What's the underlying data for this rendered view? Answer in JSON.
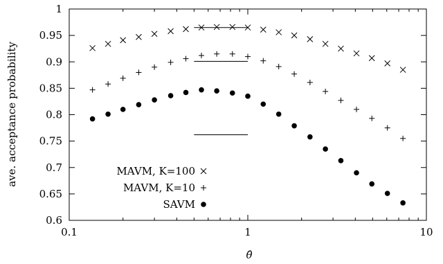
{
  "chart_data": {
    "type": "scatter",
    "xscale": "log",
    "xlim": [
      0.1,
      10
    ],
    "ylim": [
      0.6,
      1.0
    ],
    "xticks": [
      0.1,
      1,
      10
    ],
    "xtick_labels": [
      "0.1",
      "1",
      "10"
    ],
    "yticks": [
      0.6,
      0.65,
      0.7,
      0.75,
      0.8,
      0.85,
      0.9,
      0.95,
      1.0
    ],
    "ytick_labels": [
      "0.6",
      "0.65",
      "0.7",
      "0.75",
      "0.8",
      "0.85",
      "0.9",
      "0.95",
      "1"
    ],
    "xlabel": "θ̂",
    "ylabel": "ave. acceptance probability",
    "grid": false,
    "legend_position": "bottom-left",
    "x": [
      0.135,
      0.165,
      0.2,
      0.245,
      0.3,
      0.37,
      0.45,
      0.55,
      0.67,
      0.82,
      1.0,
      1.22,
      1.49,
      1.82,
      2.23,
      2.72,
      3.32,
      4.06,
      4.95,
      6.05,
      7.39
    ],
    "series": [
      {
        "name": "MAVM, K=100",
        "marker": "x",
        "values": [
          0.926,
          0.934,
          0.941,
          0.947,
          0.953,
          0.958,
          0.962,
          0.965,
          0.966,
          0.966,
          0.965,
          0.961,
          0.956,
          0.95,
          0.943,
          0.934,
          0.925,
          0.916,
          0.907,
          0.897,
          0.885
        ]
      },
      {
        "name": "MAVM, K=10",
        "marker": "+",
        "values": [
          0.847,
          0.858,
          0.869,
          0.88,
          0.89,
          0.899,
          0.906,
          0.912,
          0.915,
          0.915,
          0.91,
          0.902,
          0.891,
          0.877,
          0.861,
          0.844,
          0.827,
          0.81,
          0.793,
          0.775,
          0.755
        ]
      },
      {
        "name": "SAVM",
        "marker": "dot",
        "values": [
          0.792,
          0.801,
          0.81,
          0.819,
          0.828,
          0.836,
          0.842,
          0.847,
          0.845,
          0.841,
          0.835,
          0.82,
          0.801,
          0.779,
          0.758,
          0.735,
          0.713,
          0.69,
          0.669,
          0.651,
          0.633
        ]
      }
    ],
    "reference_lines": [
      {
        "x": [
          0.5,
          1.0
        ],
        "y": 0.965
      },
      {
        "x": [
          0.5,
          1.0
        ],
        "y": 0.901
      },
      {
        "x": [
          0.5,
          1.0
        ],
        "y": 0.762
      }
    ]
  }
}
